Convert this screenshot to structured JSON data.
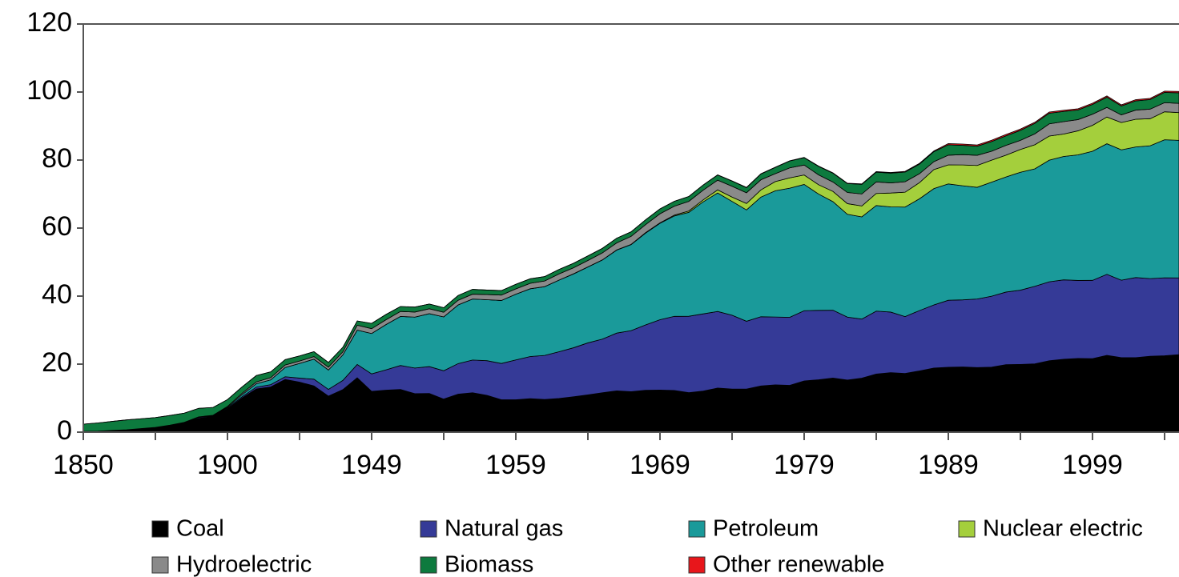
{
  "chart_data": {
    "type": "stacked_area",
    "categories": [
      "1850",
      null,
      null,
      null,
      null,
      null,
      null,
      null,
      null,
      null,
      "1900",
      null,
      null,
      null,
      null,
      null,
      null,
      null,
      null,
      null,
      "1949",
      null,
      null,
      null,
      null,
      null,
      null,
      null,
      null,
      null,
      "1959",
      null,
      null,
      null,
      null,
      null,
      null,
      null,
      null,
      null,
      "1969",
      null,
      null,
      null,
      null,
      null,
      null,
      null,
      null,
      null,
      "1979",
      null,
      null,
      null,
      null,
      null,
      null,
      null,
      null,
      null,
      "1989",
      null,
      null,
      null,
      null,
      null,
      null,
      null,
      null,
      null,
      "1999",
      null,
      null,
      null,
      null,
      null,
      null
    ],
    "ylim": [
      0,
      120
    ],
    "yticks": [
      0,
      20,
      40,
      60,
      80,
      100,
      120
    ],
    "legend": "bottom",
    "series": [
      {
        "name": "Coal",
        "color": "#000000",
        "values": [
          0.22,
          0.3,
          0.52,
          0.7,
          1.05,
          1.4,
          2.05,
          2.8,
          4.06,
          4.6,
          6.84,
          10.0,
          12.7,
          13.3,
          15.5,
          14.7,
          13.6,
          10.6,
          12.5,
          16.0,
          11.98,
          12.35,
          12.55,
          11.31,
          11.37,
          9.72,
          11.17,
          11.59,
          10.82,
          9.53,
          9.52,
          9.84,
          9.62,
          9.91,
          10.41,
          10.96,
          11.58,
          12.14,
          11.91,
          12.33,
          12.38,
          12.26,
          11.6,
          12.08,
          12.97,
          12.66,
          12.66,
          13.58,
          13.92,
          13.77,
          15.04,
          15.42,
          15.91,
          15.32,
          15.89,
          17.07,
          17.48,
          17.26,
          18.01,
          18.85,
          19.07,
          19.17,
          18.99,
          19.12,
          19.84,
          19.91,
          20.09,
          21.0,
          21.45,
          21.66,
          21.62,
          22.58,
          21.91,
          21.9,
          22.32,
          22.47,
          22.8
        ]
      },
      {
        "name": "Natural gas",
        "color": "#353a97",
        "values": [
          0,
          0,
          0,
          0,
          0,
          0,
          0,
          0.05,
          0.26,
          0.15,
          0.25,
          0.37,
          0.54,
          0.67,
          0.8,
          1.2,
          1.97,
          1.97,
          2.7,
          3.9,
          5.15,
          5.97,
          7.05,
          7.55,
          7.91,
          8.33,
          8.99,
          9.61,
          10.19,
          10.66,
          11.72,
          12.39,
          12.93,
          13.73,
          14.4,
          15.29,
          15.77,
          16.99,
          17.94,
          19.21,
          20.68,
          21.79,
          22.47,
          22.7,
          22.51,
          21.73,
          19.95,
          20.35,
          19.93,
          20.0,
          20.67,
          20.39,
          19.93,
          18.51,
          17.36,
          18.51,
          17.83,
          16.71,
          17.74,
          18.55,
          19.71,
          19.73,
          20.15,
          20.84,
          21.35,
          21.84,
          22.78,
          23.2,
          23.33,
          22.94,
          23.01,
          23.82,
          22.77,
          23.56,
          22.83,
          22.91,
          22.56
        ]
      },
      {
        "name": "Petroleum",
        "color": "#1a9a9a",
        "values": [
          0,
          0,
          0,
          0,
          0,
          0,
          0,
          0.04,
          0.16,
          0.1,
          0.23,
          0.6,
          1.0,
          1.4,
          2.7,
          4.3,
          5.9,
          5.7,
          7.5,
          10.1,
          11.88,
          13.32,
          14.43,
          14.96,
          15.56,
          15.84,
          17.25,
          17.94,
          17.93,
          18.53,
          19.32,
          19.92,
          20.22,
          21.05,
          21.7,
          22.3,
          23.25,
          24.4,
          25.28,
          26.98,
          28.34,
          29.52,
          30.56,
          32.95,
          34.84,
          33.45,
          32.73,
          35.18,
          37.12,
          37.97,
          37.12,
          34.2,
          31.93,
          30.23,
          30.05,
          31.05,
          30.92,
          32.2,
          32.87,
          34.22,
          34.21,
          33.55,
          32.85,
          33.53,
          33.84,
          34.67,
          34.55,
          35.76,
          36.27,
          36.93,
          37.96,
          38.4,
          38.33,
          38.4,
          39.05,
          40.59,
          40.44
        ]
      },
      {
        "name": "Nuclear electric",
        "color": "#a4cf3c",
        "values": [
          0,
          0,
          0,
          0,
          0,
          0,
          0,
          0,
          0,
          0,
          0,
          0,
          0,
          0,
          0,
          0,
          0,
          0,
          0,
          0,
          0,
          0,
          0,
          0,
          0,
          0,
          0,
          0,
          0,
          0,
          0,
          0.01,
          0.02,
          0.03,
          0.04,
          0.04,
          0.04,
          0.06,
          0.09,
          0.14,
          0.15,
          0.24,
          0.41,
          0.58,
          0.91,
          1.27,
          1.9,
          2.11,
          2.7,
          3.02,
          2.78,
          2.74,
          3.01,
          3.13,
          3.2,
          3.55,
          4.08,
          4.38,
          4.75,
          5.59,
          5.6,
          6.1,
          6.42,
          6.48,
          6.41,
          6.69,
          7.08,
          7.09,
          6.6,
          7.07,
          7.61,
          7.86,
          8.03,
          8.14,
          7.96,
          8.22,
          8.16
        ]
      },
      {
        "name": "Hydroelectric",
        "color": "#8a8a8a",
        "values": [
          0,
          0,
          0,
          0,
          0,
          0,
          0,
          0,
          0.02,
          0.12,
          0.25,
          0.39,
          0.54,
          0.66,
          0.74,
          0.7,
          0.75,
          0.83,
          0.88,
          1.44,
          1.42,
          1.42,
          1.46,
          1.49,
          1.44,
          1.36,
          1.36,
          1.43,
          1.52,
          1.59,
          1.55,
          1.61,
          1.66,
          1.82,
          1.77,
          1.89,
          2.06,
          2.06,
          2.35,
          2.35,
          2.65,
          2.63,
          2.82,
          2.86,
          2.86,
          3.18,
          3.15,
          2.98,
          2.33,
          2.94,
          2.93,
          2.9,
          2.76,
          3.27,
          3.53,
          3.39,
          2.97,
          3.07,
          2.63,
          2.33,
          2.84,
          3.05,
          2.99,
          2.62,
          2.89,
          2.68,
          3.21,
          3.59,
          3.64,
          3.3,
          3.27,
          2.81,
          2.24,
          2.69,
          2.82,
          2.69,
          2.7
        ]
      },
      {
        "name": "Biomass",
        "color": "#0d7a3e",
        "values": [
          2.14,
          2.4,
          2.64,
          2.9,
          2.89,
          2.9,
          2.85,
          2.7,
          2.5,
          2.3,
          2.0,
          1.9,
          1.86,
          1.7,
          1.6,
          1.5,
          1.45,
          1.4,
          1.36,
          1.26,
          1.55,
          1.56,
          1.45,
          1.47,
          1.4,
          1.34,
          1.42,
          1.42,
          1.32,
          1.32,
          1.35,
          1.32,
          1.29,
          1.3,
          1.32,
          1.34,
          1.33,
          1.37,
          1.34,
          1.42,
          1.44,
          1.43,
          1.43,
          1.5,
          1.53,
          1.54,
          1.5,
          1.71,
          1.84,
          2.04,
          2.15,
          2.48,
          2.59,
          2.62,
          2.83,
          2.88,
          2.86,
          2.84,
          2.82,
          2.94,
          3.06,
          2.74,
          2.68,
          2.85,
          2.8,
          2.94,
          3.07,
          3.13,
          3.01,
          2.83,
          2.89,
          3.01,
          2.62,
          2.71,
          2.81,
          3.02,
          3.12
        ]
      },
      {
        "name": "Other renewable",
        "color": "#e8161b",
        "values": [
          0,
          0,
          0,
          0,
          0,
          0,
          0,
          0,
          0,
          0,
          0,
          0,
          0,
          0,
          0,
          0,
          0,
          0,
          0,
          0,
          0,
          0,
          0,
          0,
          0,
          0,
          0,
          0,
          0,
          0,
          0,
          0.01,
          0.01,
          0.01,
          0.01,
          0.01,
          0.01,
          0.01,
          0.01,
          0.01,
          0.01,
          0.01,
          0.01,
          0.03,
          0.04,
          0.05,
          0.07,
          0.08,
          0.08,
          0.06,
          0.08,
          0.11,
          0.12,
          0.11,
          0.13,
          0.17,
          0.2,
          0.22,
          0.23,
          0.22,
          0.36,
          0.37,
          0.37,
          0.39,
          0.4,
          0.38,
          0.33,
          0.35,
          0.35,
          0.36,
          0.36,
          0.38,
          0.33,
          0.36,
          0.36,
          0.37,
          0.4
        ]
      }
    ]
  }
}
